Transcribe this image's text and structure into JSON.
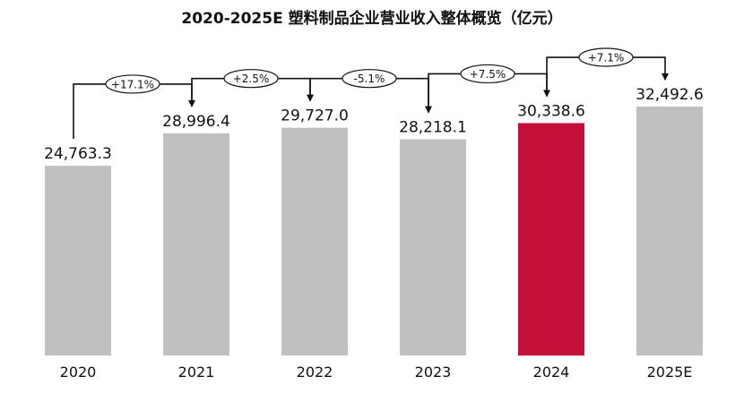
{
  "chart_data": {
    "type": "bar",
    "title": "2020-2025E 塑料制品企业营业收入整体概览（亿元）",
    "categories": [
      "2020",
      "2021",
      "2022",
      "2023",
      "2024",
      "2025E"
    ],
    "values": [
      24763.3,
      28996.4,
      29727.0,
      28218.1,
      30338.6,
      32492.6
    ],
    "value_labels": [
      "24,763.3",
      "28,996.4",
      "29,727.0",
      "28,218.1",
      "30,338.6",
      "32,492.6"
    ],
    "growth_labels": [
      "+17.1%",
      "+2.5%",
      "-5.1%",
      "+7.5%",
      "+7.1%"
    ],
    "highlight_index": 4,
    "colors": {
      "bar": "#c0c0c0",
      "highlight": "#c41038",
      "text": "#111111",
      "connector": "#111111"
    },
    "ylim": [
      0,
      34000
    ],
    "grid": false,
    "legend": "none"
  }
}
